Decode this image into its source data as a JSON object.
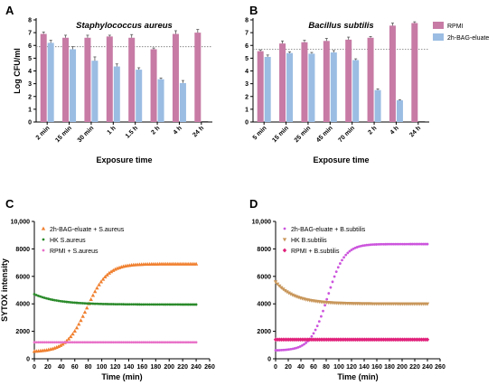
{
  "colors": {
    "rpmi_bar": "#c77ba5",
    "eluate_bar": "#9bbde3",
    "errorbar": "#555555",
    "dotted_line": "#777777",
    "c_eluate": "#f08030",
    "c_hk": "#2a8a2a",
    "c_rpmi": "#e870c8",
    "d_eluate": "#cc55dd",
    "d_hk": "#c8965a",
    "d_rpmi": "#e0207a"
  },
  "chart_data": [
    {
      "panel": "A",
      "type": "bar",
      "title": "Staphylococcus aureus",
      "xlabel": "Exposure time",
      "ylabel": "Log CFU/ml",
      "ylim": [
        0,
        8
      ],
      "yticks": [
        0,
        1,
        2,
        3,
        4,
        5,
        6,
        7,
        8
      ],
      "reference_line": 5.9,
      "categories": [
        "2 min",
        "15 min",
        "30 min",
        "1 h",
        "1.5 h",
        "2 h",
        "4 h",
        "24 h"
      ],
      "series": [
        {
          "values": [
            6.9,
            6.6,
            6.6,
            6.7,
            6.6,
            5.7,
            6.9,
            7.0
          ],
          "errors": [
            0.15,
            0.2,
            0.2,
            0.1,
            0.25,
            0.1,
            0.25,
            0.25
          ]
        },
        {
          "values": [
            6.2,
            5.7,
            4.8,
            4.35,
            4.1,
            3.35,
            3.05,
            0.0
          ],
          "errors": [
            0.2,
            0.2,
            0.3,
            0.2,
            0.15,
            0.1,
            0.2,
            0.0
          ]
        }
      ]
    },
    {
      "panel": "B",
      "type": "bar",
      "title": "Bacillus subtilis",
      "xlabel": "Exposure time",
      "ylabel": "",
      "ylim": [
        0,
        8
      ],
      "yticks": [
        0,
        1,
        2,
        3,
        4,
        5,
        6,
        7,
        8
      ],
      "reference_line": 5.7,
      "legend_position": "top-right",
      "categories": [
        "5 min",
        "15 min",
        "25 min",
        "45 min",
        "70 min",
        "2 h",
        "4 h",
        "24 h"
      ],
      "series": [
        {
          "name": "RPMI",
          "values": [
            5.55,
            6.15,
            6.25,
            6.35,
            6.45,
            6.6,
            7.55,
            7.75
          ],
          "errors": [
            0.1,
            0.2,
            0.15,
            0.2,
            0.2,
            0.1,
            0.2,
            0.1
          ]
        },
        {
          "name": "2h-BAG-eluate",
          "values": [
            5.1,
            5.4,
            5.35,
            5.45,
            4.85,
            2.5,
            1.7,
            0.0
          ],
          "errors": [
            0.15,
            0.1,
            0.1,
            0.15,
            0.1,
            0.1,
            0.05,
            0.0
          ]
        }
      ]
    },
    {
      "panel": "C",
      "type": "scatter",
      "xlabel": "Time (min)",
      "ylabel": "SYTOX intensity",
      "xlim": [
        0,
        260
      ],
      "ylim": [
        0,
        10000
      ],
      "xticks": [
        0,
        20,
        40,
        60,
        80,
        100,
        120,
        140,
        160,
        180,
        200,
        220,
        240,
        260
      ],
      "yticks": [
        0,
        2000,
        4000,
        6000,
        8000,
        10000
      ],
      "ytick_labels": [
        "0",
        "2000",
        "4000",
        "6000",
        "8000",
        "10,000"
      ],
      "legend_position": "top-left",
      "series": [
        {
          "name": "2h-BAG-eluate + S.aureus",
          "marker": "triangle-up",
          "color_key": "c_eluate",
          "model": "sigmoid",
          "params": {
            "start": 500,
            "end": 6900,
            "mid": 78,
            "k": 0.065
          },
          "x_start": 0,
          "x_end": 240,
          "x_step": 3
        },
        {
          "name": "HK S.aureus",
          "marker": "dot",
          "color_key": "c_hk",
          "model": "decay",
          "params": {
            "start": 4700,
            "end": 3950,
            "tau": 35
          },
          "x_start": 0,
          "x_end": 240,
          "x_step": 3
        },
        {
          "name": "RPMI + S.aureus",
          "marker": "dot",
          "color_key": "c_rpmi",
          "model": "constant",
          "params": {
            "value": 1200
          },
          "x_start": 0,
          "x_end": 240,
          "x_step": 3
        }
      ]
    },
    {
      "panel": "D",
      "type": "scatter",
      "xlabel": "Time (min)",
      "ylabel": "",
      "xlim": [
        0,
        260
      ],
      "ylim": [
        0,
        10000
      ],
      "xticks": [
        0,
        20,
        40,
        60,
        80,
        100,
        120,
        140,
        160,
        180,
        200,
        220,
        240,
        260
      ],
      "yticks": [
        0,
        2000,
        4000,
        6000,
        8000,
        10000
      ],
      "ytick_labels": [
        "0",
        "2000",
        "4000",
        "6000",
        "8000",
        "10,000"
      ],
      "legend_position": "top-left",
      "series": [
        {
          "name": "2h-BAG-eluate + B.subtilis",
          "marker": "dot",
          "color_key": "d_eluate",
          "model": "sigmoid",
          "params": {
            "start": 600,
            "end": 8350,
            "mid": 82,
            "k": 0.075
          },
          "x_start": 0,
          "x_end": 240,
          "x_step": 3
        },
        {
          "name": "HK B.subtilis",
          "marker": "triangle-down",
          "color_key": "d_hk",
          "model": "decay",
          "params": {
            "start": 5600,
            "end": 4000,
            "tau": 30
          },
          "x_start": 0,
          "x_end": 240,
          "x_step": 3
        },
        {
          "name": "RPMI + B.subtilis",
          "marker": "diamond",
          "color_key": "d_rpmi",
          "model": "constant",
          "params": {
            "value": 1400
          },
          "x_start": 0,
          "x_end": 240,
          "x_step": 3
        }
      ]
    }
  ]
}
